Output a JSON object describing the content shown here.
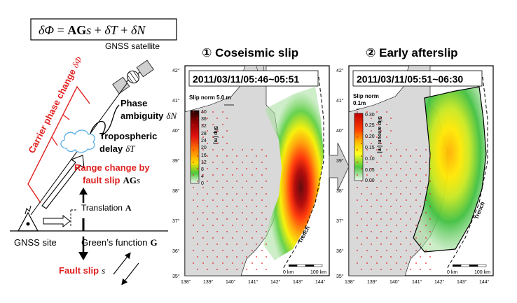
{
  "equation": {
    "lhs": "δΦ",
    "eq": " = ",
    "ag": "AG",
    "s": "s",
    "plus1": " + ",
    "dT": "δT",
    "plus2": " + ",
    "dN": "δN"
  },
  "labels": {
    "gnss_satellite": "GNSS satellite",
    "carrier_phase": "Carrier phase change",
    "carrier_symbol": "δΦ",
    "phase_ambiguity_1": "Phase",
    "phase_ambiguity_2": "ambiguity",
    "phase_symbol": "δN",
    "tropo_1": "Tropospheric",
    "tropo_2": "delay",
    "tropo_symbol": "δT",
    "range_change_1": "Range change by",
    "range_change_2": "fault slip",
    "range_symbol_bold": "AG",
    "range_symbol_s": "s",
    "translation": "Translation",
    "translation_symbol": "A",
    "gnss_site": "GNSS site",
    "greens_function": "Green’s function",
    "greens_symbol": "G",
    "fault_slip": "Fault slip",
    "fault_symbol": "s"
  },
  "panels": {
    "p1": {
      "heading": "① Coseismic slip",
      "date": "2011/03/11/05:46~05:51",
      "norm": "Slip norm 5.0 m",
      "colorbar_label": "Slip [m]",
      "ticks": [
        "40",
        "36",
        "32",
        "28",
        "24",
        "20",
        "16",
        "12",
        "8",
        "4",
        "0"
      ],
      "trench": "Trench",
      "scale_0": "0 km",
      "scale_100": "100 km"
    },
    "p2": {
      "heading": "② Early afterslip",
      "date": "2011/03/11/05:51~06:30",
      "norm_1": "Slip norm",
      "norm_2": "0.1m",
      "colorbar_label": "Slip amount [m]",
      "ticks": [
        "0.30",
        "0.25",
        "0.20",
        "0.15",
        "0.10",
        "0.05",
        "0.00"
      ],
      "trench": "Trench",
      "scale_0": "0 km",
      "scale_100": "100 km"
    }
  },
  "axes": {
    "lat_labels": [
      "42°",
      "41°",
      "40°",
      "39°",
      "38°",
      "37°",
      "36°",
      "35°"
    ],
    "lon_labels": [
      "138°",
      "139°",
      "140°",
      "141°",
      "142°",
      "143°",
      "144°"
    ]
  },
  "colors": {
    "red_text": "#e02020",
    "sky_blue": "#8ec9f0",
    "land": "#d9d9d9",
    "sea": "#ffffff"
  }
}
